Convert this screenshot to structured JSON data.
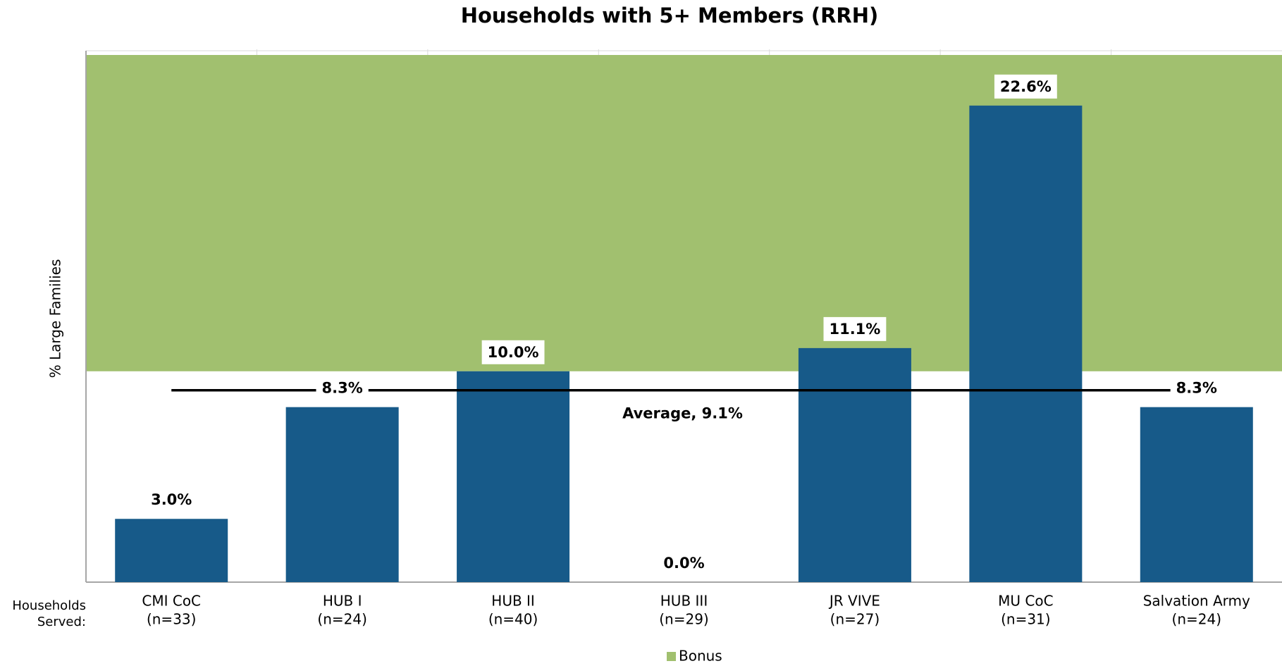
{
  "chart_data": {
    "type": "bar",
    "title": "Households with 5+ Members (RRH)",
    "y_axis_label": "% Large Families",
    "x_axis_label": "Households Served:",
    "categories": [
      "CMI CoC",
      "HUB I",
      "HUB II",
      "HUB III",
      "JR VIVE",
      "MU CoC",
      "Salvation Army"
    ],
    "category_counts": [
      "(n=33)",
      "(n=24)",
      "(n=40)",
      "(n=29)",
      "(n=27)",
      "(n=31)",
      "(n=24)"
    ],
    "values": [
      3.0,
      8.3,
      10.0,
      0.0,
      11.1,
      22.6,
      8.3
    ],
    "value_labels": [
      "3.0%",
      "8.3%",
      "10.0%",
      "0.0%",
      "11.1%",
      "22.6%",
      "8.3%"
    ],
    "color": "#175a89",
    "ylim": [
      0,
      25
    ],
    "bonus": {
      "name": "Bonus",
      "color": "#a1c06f",
      "range": [
        10,
        25
      ]
    },
    "average": {
      "label": "Average, 9.1%",
      "value": 9.1
    },
    "legend": "bottom"
  }
}
